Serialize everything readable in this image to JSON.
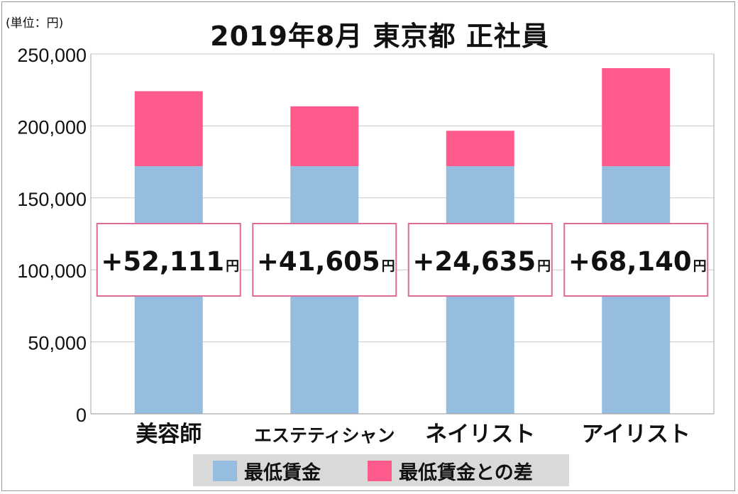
{
  "unit_label": "(単位：円)",
  "title": "2019年8月 東京都 正社員",
  "colors": {
    "min_wage": "#95bde0",
    "diff": "#ff5a8c",
    "callout_border": "#e06a98",
    "grid": "#c8c8c8",
    "axis": "#a6a6a6",
    "legend_bg": "#d9d9d9"
  },
  "legend": [
    {
      "label": "最低賃金"
    },
    {
      "label": "最低賃金との差"
    }
  ],
  "chart_data": {
    "type": "bar",
    "stacked": true,
    "categories": [
      "美容師",
      "エステティシャン",
      "ネイリスト",
      "アイリスト"
    ],
    "series": [
      {
        "name": "最低賃金",
        "values": [
          172000,
          172000,
          172000,
          172000
        ]
      },
      {
        "name": "最低賃金との差",
        "values": [
          52111,
          41605,
          24635,
          68140
        ]
      }
    ],
    "ylim": [
      0,
      250000
    ],
    "yticks": [
      0,
      50000,
      100000,
      150000,
      200000,
      250000
    ],
    "ytick_labels": [
      "0",
      "50,000",
      "100,000",
      "150,000",
      "200,000",
      "250,000"
    ],
    "grid": true,
    "callouts": [
      {
        "number": "+52,111",
        "unit": "円"
      },
      {
        "number": "+41,605",
        "unit": "円"
      },
      {
        "number": "+24,635",
        "unit": "円"
      },
      {
        "number": "+68,140",
        "unit": "円"
      }
    ]
  }
}
